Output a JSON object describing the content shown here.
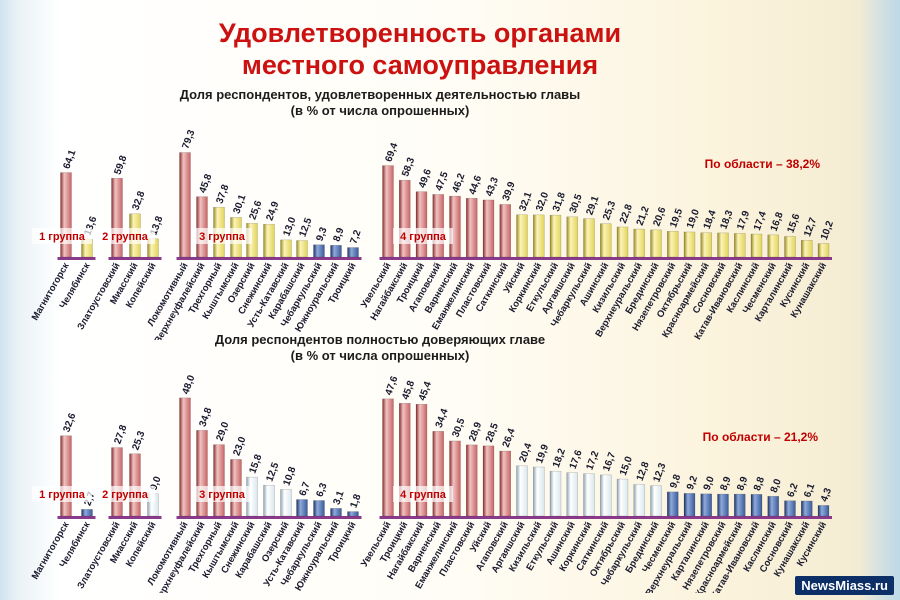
{
  "title_line1": "Удовлетворенность органами",
  "title_line2": "местного самоуправления",
  "watermark": "NewsMiass.ru",
  "colors": {
    "red": "#c86464",
    "yellow": "#e2d35a",
    "blue": "#3a5a99",
    "light": "#d9e7ee",
    "purple": "#8a4a8c",
    "label_red": "#c00000"
  },
  "chart_data": [
    {
      "type": "bar",
      "title": "Доля респондентов, удовлетворенных деятельностью главы",
      "subtitle": "(в % от числа опрошенных)",
      "annotation": "По области – 38,2%",
      "ylim": [
        0,
        85
      ],
      "groups": [
        "1 группа",
        "2 группа",
        "3 группа",
        "4 группа"
      ],
      "categories": [
        "Магнитогорск",
        "Челябинск",
        "Златоустовский",
        "Миасский",
        "Копейский",
        "Локомотивный",
        "Верхнеуфалейский",
        "Трехгорный",
        "Кыштымский",
        "Озерский",
        "Снежинский",
        "Усть-Катавский",
        "Карабашский",
        "Чебаркульский",
        "Южноуральский",
        "Троицкий",
        "Увельский",
        "Нагайбакский",
        "Троицкий",
        "Агаповский",
        "Варненский",
        "Еманжелинский",
        "Пластовский",
        "Саткинский",
        "Уйский",
        "Коркинский",
        "Еткульский",
        "Аргаяшский",
        "Чебаркульский",
        "Ашинский",
        "Кизильский",
        "Верхнеуральский",
        "Брединский",
        "Нязепетровский",
        "Октябрьский",
        "Красноармейский",
        "Сосновский",
        "Катав-Ивановский",
        "Каслинский",
        "Чесменский",
        "Карталинский",
        "Кусинский",
        "Кунашакский"
      ],
      "labels": [
        "64,1",
        "13,6",
        "59,8",
        "32,8",
        "13,8",
        "79,3",
        "45,8",
        "37,8",
        "30,1",
        "25,6",
        "24,9",
        "13,0",
        "12,5",
        "9,3",
        "8,9",
        "7,2",
        "69,4",
        "58,3",
        "49,6",
        "47,5",
        "46,2",
        "44,6",
        "43,3",
        "39,9",
        "32,1",
        "32,0",
        "31,8",
        "30,5",
        "29,1",
        "25,3",
        "22,8",
        "21,2",
        "20,6",
        "19,5",
        "19,0",
        "18,4",
        "18,3",
        "17,9",
        "17,4",
        "16,8",
        "15,6",
        "12,7",
        "10,2"
      ],
      "values": [
        64.1,
        13.6,
        59.8,
        32.8,
        13.8,
        79.3,
        45.8,
        37.8,
        30.1,
        25.6,
        24.9,
        13.0,
        12.5,
        9.3,
        8.9,
        7.2,
        69.4,
        58.3,
        49.6,
        47.5,
        46.2,
        44.6,
        43.3,
        39.9,
        32.1,
        32.0,
        31.8,
        30.5,
        29.1,
        25.3,
        22.8,
        21.2,
        20.6,
        19.5,
        19.0,
        18.4,
        18.3,
        17.9,
        17.4,
        16.8,
        15.6,
        12.7,
        10.2
      ],
      "group_index": [
        0,
        0,
        1,
        1,
        1,
        2,
        2,
        2,
        2,
        2,
        2,
        2,
        2,
        2,
        2,
        2,
        3,
        3,
        3,
        3,
        3,
        3,
        3,
        3,
        3,
        3,
        3,
        3,
        3,
        3,
        3,
        3,
        3,
        3,
        3,
        3,
        3,
        3,
        3,
        3,
        3,
        3,
        3
      ],
      "bar_color": [
        "red",
        "yellow",
        "red",
        "yellow",
        "yellow",
        "red",
        "red",
        "yellow",
        "yellow",
        "yellow",
        "yellow",
        "yellow",
        "yellow",
        "blue",
        "blue",
        "blue",
        "red",
        "red",
        "red",
        "red",
        "red",
        "red",
        "red",
        "red",
        "yellow",
        "yellow",
        "yellow",
        "yellow",
        "yellow",
        "yellow",
        "yellow",
        "yellow",
        "yellow",
        "yellow",
        "yellow",
        "yellow",
        "yellow",
        "yellow",
        "yellow",
        "yellow",
        "yellow",
        "yellow",
        "yellow"
      ]
    },
    {
      "type": "bar",
      "title": "Доля респондентов полностью доверяющих главе",
      "subtitle": "(в % от числа опрошенных)",
      "annotation": "По области – 21,2%",
      "ylim": [
        0,
        52
      ],
      "groups": [
        "1 группа",
        "2 группа",
        "3 группа",
        "4 группа"
      ],
      "categories": [
        "Магнитогорск",
        "Челябинск",
        "Златоустовский",
        "Миасский",
        "Копейский",
        "Локомотивный",
        "Верхнеуфалейский",
        "Трехгорный",
        "Кыштымский",
        "Снежинский",
        "Карабашский",
        "Озерский",
        "Усть-Катавский",
        "Чебаркульский",
        "Южноуральский",
        "Троицкий",
        "Увельский",
        "Троицкий",
        "Нагайбакский",
        "Варненский",
        "Еманжелинский",
        "Пластовский",
        "Уйский",
        "Агаповский",
        "Аргаяшский",
        "Кизильский",
        "Еткульский",
        "Ашинский",
        "Коркинский",
        "Саткинский",
        "Октябрьский",
        "Чебаркульский",
        "Брединский",
        "Чесменский",
        "Верхнеуральский",
        "Карталинский",
        "Нязепетровский",
        "Красноармейский",
        "Катав-Ивановский",
        "Каслинский",
        "Сосновский",
        "Кунашакский",
        "Кусинский"
      ],
      "labels": [
        "32,6",
        "2,7",
        "27,8",
        "25,3",
        "9,0",
        "48,0",
        "34,8",
        "29,0",
        "23,0",
        "15,8",
        "12,5",
        "10,8",
        "6,7",
        "6,3",
        "3,1",
        "1,8",
        "47,6",
        "45,8",
        "45,4",
        "34,4",
        "30,5",
        "28,9",
        "28,5",
        "26,4",
        "20,4",
        "19,9",
        "18,2",
        "17,6",
        "17,2",
        "16,7",
        "15,0",
        "12,8",
        "12,3",
        "9,8",
        "9,2",
        "9,0",
        "8,9",
        "8,9",
        "8,8",
        "8,0",
        "6,2",
        "6,1",
        "4,3"
      ],
      "values": [
        32.6,
        2.7,
        27.8,
        25.3,
        9.0,
        48.0,
        34.8,
        29.0,
        23.0,
        15.8,
        12.5,
        10.8,
        6.7,
        6.3,
        3.1,
        1.8,
        47.6,
        45.8,
        45.4,
        34.4,
        30.5,
        28.9,
        28.5,
        26.4,
        20.4,
        19.9,
        18.2,
        17.6,
        17.2,
        16.7,
        15.0,
        12.8,
        12.3,
        9.8,
        9.2,
        9.0,
        8.9,
        8.9,
        8.8,
        8.0,
        6.2,
        6.1,
        4.3
      ],
      "group_index": [
        0,
        0,
        1,
        1,
        1,
        2,
        2,
        2,
        2,
        2,
        2,
        2,
        2,
        2,
        2,
        2,
        3,
        3,
        3,
        3,
        3,
        3,
        3,
        3,
        3,
        3,
        3,
        3,
        3,
        3,
        3,
        3,
        3,
        3,
        3,
        3,
        3,
        3,
        3,
        3,
        3,
        3,
        3
      ],
      "bar_color": [
        "red",
        "blue",
        "red",
        "red",
        "light",
        "red",
        "red",
        "red",
        "red",
        "light",
        "light",
        "light",
        "blue",
        "blue",
        "blue",
        "blue",
        "red",
        "red",
        "red",
        "red",
        "red",
        "red",
        "red",
        "red",
        "light",
        "light",
        "light",
        "light",
        "light",
        "light",
        "light",
        "light",
        "light",
        "blue",
        "blue",
        "blue",
        "blue",
        "blue",
        "blue",
        "blue",
        "blue",
        "blue",
        "blue"
      ]
    }
  ]
}
